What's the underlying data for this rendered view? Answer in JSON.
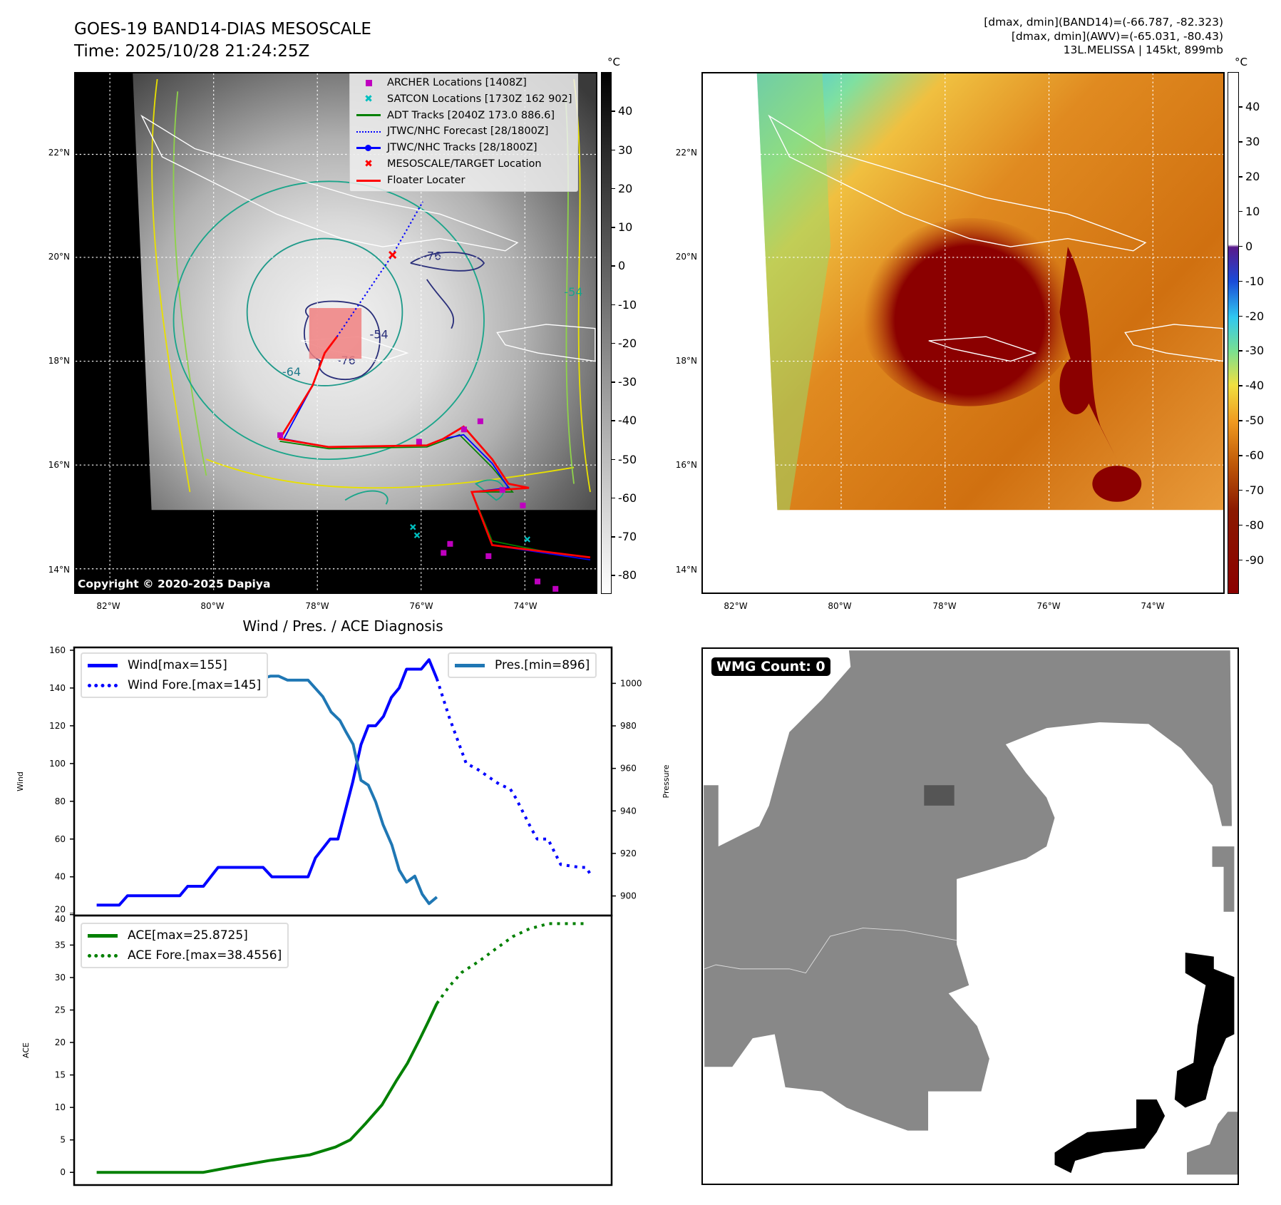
{
  "header": {
    "title": "GOES-19 BAND14-DIAS MESOSCALE",
    "time": "Time: 2025/10/28 21:24:25Z",
    "stats_band14": "[dmax, dmin](BAND14)=(-66.787, -82.323)",
    "stats_awv": "[dmax, dmin](AWV)=(-65.031, -80.43)",
    "storm": "13L.MELISSA | 145kt, 899mb"
  },
  "maps": {
    "lat_labels": [
      "22°N",
      "20°N",
      "18°N",
      "16°N",
      "14°N"
    ],
    "lon_labels": [
      "82°W",
      "80°W",
      "78°W",
      "76°W",
      "74°W"
    ],
    "copyright": "Copyright © 2020-2025 Dapiya",
    "contour_labels": [
      "-76",
      "-54",
      "-64",
      "-76",
      "-54"
    ],
    "legend": [
      {
        "label": "ARCHER Locations [1408Z]",
        "icon": "square-marker",
        "color": "#bf00bf"
      },
      {
        "label": "SATCON Locations [1730Z 162 902]",
        "icon": "x-marker",
        "color": "#00bfbf"
      },
      {
        "label": "ADT Tracks [2040Z 173.0 886.6]",
        "icon": "line",
        "color": "#008000"
      },
      {
        "label": "JTWC/NHC Forecast [28/1800Z]",
        "icon": "dotted-line",
        "color": "#0000ff"
      },
      {
        "label": "JTWC/NHC Tracks [28/1800Z]",
        "icon": "line-dot",
        "color": "#0000ff"
      },
      {
        "label": "MESOSCALE/TARGET Location",
        "icon": "x-marker",
        "color": "#ff0000"
      },
      {
        "label": "Floater Locater",
        "icon": "line",
        "color": "#ff0000"
      }
    ],
    "colorbar_left": {
      "unit": "°C",
      "ticks": [
        40,
        30,
        20,
        10,
        0,
        -10,
        -20,
        -30,
        -40,
        -50,
        -60,
        -70,
        -80
      ],
      "range": [
        50.2,
        -84.7
      ]
    },
    "colorbar_right": {
      "unit": "°C",
      "ticks": [
        40,
        30,
        20,
        10,
        0,
        -10,
        -20,
        -30,
        -40,
        -50,
        -60,
        -70,
        -80,
        -90
      ],
      "range": [
        50.1,
        -99.7
      ]
    }
  },
  "wmg": {
    "label": "WMG Count: 0"
  },
  "chart_data": [
    {
      "type": "line",
      "title": "Wind / Pres. / ACE Diagnosis",
      "ylabel": "Wind",
      "ylabel_right": "Pressure",
      "xlim": [
        -4.6,
        105.2
      ],
      "ylim": [
        19.5,
        161.5
      ],
      "ylim_right": [
        890.8,
        1016.9
      ],
      "yticks": [
        20,
        40,
        60,
        80,
        100,
        120,
        140,
        160
      ],
      "yticks_right": [
        900,
        920,
        940,
        960,
        980,
        1000
      ],
      "series": [
        {
          "name": "Wind[max=155]",
          "color": "#0000ff",
          "style": "solid",
          "axis": "left",
          "x": [
            0,
            4.6,
            6.3,
            17,
            18.6,
            21.8,
            24.8,
            34,
            35.8,
            43.2,
            44.7,
            47.7,
            49.3,
            52.3,
            54,
            55.5,
            57,
            58.6,
            60.2,
            61.8,
            63.3,
            66.3,
            67.9,
            69.5
          ],
          "y": [
            25,
            25,
            30,
            30,
            35,
            35,
            45,
            45,
            40,
            40,
            50,
            60,
            60,
            90,
            110,
            120,
            120,
            125,
            135,
            140,
            150,
            150,
            155,
            145
          ]
        },
        {
          "name": "Wind Fore.[max=145]",
          "color": "#0000ff",
          "style": "dotted",
          "axis": "left",
          "x": [
            69.5,
            72,
            75.5,
            77.6,
            82.3,
            84.5,
            85.7,
            88.7,
            90,
            92.2,
            94.8,
            98.8,
            100,
            101
          ],
          "y": [
            145,
            124.7,
            100,
            97.3,
            89,
            86.5,
            81.4,
            66,
            60,
            60,
            46.5,
            45,
            45,
            40.7
          ]
        },
        {
          "name": "Pres.[min=896]",
          "color": "#1f77b4",
          "style": "solid",
          "axis": "right",
          "x": [
            0,
            6.3,
            7.5,
            11,
            12.3,
            16.2,
            18.7,
            20.4,
            23,
            24.8,
            27.8,
            29.5,
            32.5,
            35.5,
            37.2,
            39,
            43.2,
            46.2,
            47.9,
            49.7,
            51,
            52.4,
            54,
            55.5,
            57,
            58.5,
            60.3,
            61.8,
            63.3,
            65,
            66.5,
            67.9,
            69.5
          ],
          "y": [
            1011.3,
            1011.3,
            1010.5,
            1010.5,
            1009.6,
            1009.6,
            1008.4,
            1008.4,
            1004.5,
            1003.6,
            1003.6,
            1001.5,
            1001.5,
            1003.4,
            1003.4,
            1001.5,
            1001.5,
            993.8,
            986.5,
            982.5,
            976.9,
            971.3,
            954.4,
            952.1,
            944.3,
            933.6,
            924,
            912.2,
            906.5,
            909.3,
            900.9,
            896.4,
            899.5
          ]
        }
      ]
    },
    {
      "type": "line",
      "ylabel": "ACE",
      "xlim": [
        -4.6,
        105.2
      ],
      "ylim": [
        -1.95,
        39.55
      ],
      "yticks": [
        0,
        5,
        10,
        15,
        20,
        25,
        30,
        35,
        40
      ],
      "series": [
        {
          "name": "ACE[max=25.8725]",
          "color": "#008000",
          "style": "solid",
          "x": [
            0,
            21.8,
            28.2,
            35.1,
            43.6,
            48.8,
            51.8,
            54.8,
            58.3,
            61.3,
            63.5,
            66,
            67.8,
            69.5
          ],
          "y": [
            0,
            0,
            0.9,
            1.8,
            2.7,
            3.9,
            5,
            7.4,
            10.4,
            14.2,
            16.8,
            20.5,
            23.3,
            26
          ]
        },
        {
          "name": "ACE Fore.[max=38.4556]",
          "color": "#008000",
          "style": "dotted",
          "x": [
            69.5,
            72,
            74.6,
            78.1,
            81.5,
            85,
            88.4,
            92.3,
            100
          ],
          "y": [
            26,
            28.6,
            30.8,
            32.5,
            34.4,
            36.3,
            37.5,
            38.3,
            38.3
          ]
        }
      ]
    }
  ]
}
